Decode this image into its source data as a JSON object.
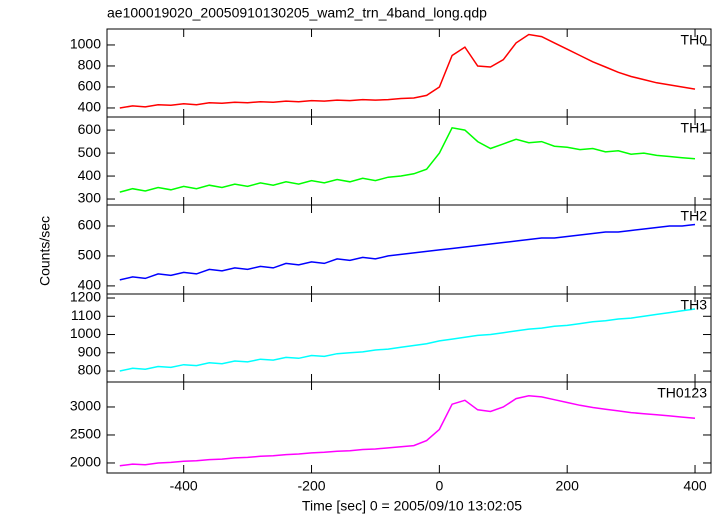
{
  "title": "ae100019020_20050910130205_wam2_trn_4band_long.qdp",
  "ylabel": "Counts/sec",
  "xlabel": "Time [sec] 0 = 2005/09/10 13:02:05",
  "xlim": [
    -520,
    425
  ],
  "xticks": [
    -400,
    -200,
    0,
    200,
    400
  ],
  "x": [
    -500,
    -480,
    -460,
    -440,
    -420,
    -400,
    -380,
    -360,
    -340,
    -320,
    -300,
    -280,
    -260,
    -240,
    -220,
    -200,
    -180,
    -160,
    -140,
    -120,
    -100,
    -80,
    -60,
    -40,
    -20,
    0,
    20,
    40,
    60,
    80,
    100,
    120,
    140,
    160,
    180,
    200,
    220,
    240,
    260,
    280,
    300,
    320,
    340,
    360,
    380,
    400
  ],
  "chart_data": [
    {
      "type": "line",
      "ylim": [
        314,
        1152
      ],
      "yticks": [
        400,
        600,
        800,
        1000
      ],
      "series": [
        {
          "name": "TH0",
          "color": "#ff0000",
          "values": [
            400,
            420,
            410,
            430,
            425,
            440,
            430,
            450,
            445,
            455,
            450,
            460,
            455,
            465,
            460,
            470,
            465,
            475,
            470,
            480,
            475,
            480,
            490,
            495,
            520,
            600,
            900,
            980,
            800,
            790,
            860,
            1020,
            1100,
            1080,
            1020,
            960,
            900,
            840,
            790,
            740,
            700,
            670,
            640,
            620,
            600,
            580
          ]
        }
      ]
    },
    {
      "type": "line",
      "ylim": [
        274,
        657
      ],
      "yticks": [
        300,
        400,
        500,
        600
      ],
      "series": [
        {
          "name": "TH1",
          "color": "#00ff00",
          "values": [
            330,
            345,
            335,
            350,
            340,
            355,
            345,
            360,
            350,
            365,
            355,
            370,
            360,
            375,
            365,
            380,
            370,
            385,
            375,
            390,
            380,
            395,
            400,
            410,
            430,
            500,
            610,
            600,
            550,
            520,
            540,
            560,
            545,
            550,
            530,
            525,
            515,
            520,
            505,
            510,
            495,
            500,
            490,
            485,
            480,
            475
          ]
        }
      ]
    },
    {
      "type": "line",
      "ylim": [
        373,
        670
      ],
      "yticks": [
        400,
        500,
        600
      ],
      "series": [
        {
          "name": "TH2",
          "color": "#0000ff",
          "values": [
            420,
            430,
            425,
            440,
            435,
            445,
            440,
            455,
            450,
            460,
            455,
            465,
            460,
            475,
            470,
            480,
            475,
            490,
            485,
            495,
            490,
            500,
            505,
            510,
            515,
            520,
            525,
            530,
            535,
            540,
            545,
            550,
            555,
            560,
            560,
            565,
            570,
            575,
            580,
            580,
            585,
            590,
            595,
            600,
            600,
            605
          ]
        }
      ]
    },
    {
      "type": "line",
      "ylim": [
        740,
        1222
      ],
      "yticks": [
        800,
        900,
        1000,
        1100,
        1200
      ],
      "series": [
        {
          "name": "TH3",
          "color": "#00ffff",
          "values": [
            800,
            815,
            810,
            825,
            820,
            835,
            830,
            845,
            840,
            855,
            850,
            865,
            860,
            875,
            870,
            885,
            880,
            895,
            900,
            905,
            915,
            920,
            930,
            940,
            950,
            965,
            975,
            985,
            995,
            1000,
            1010,
            1020,
            1030,
            1035,
            1045,
            1050,
            1060,
            1070,
            1075,
            1085,
            1090,
            1100,
            1110,
            1120,
            1130,
            1140
          ]
        }
      ]
    },
    {
      "type": "line",
      "ylim": [
        1821,
        3446
      ],
      "yticks": [
        2000,
        2500,
        3000
      ],
      "series": [
        {
          "name": "TH0123",
          "color": "#ff00ff",
          "values": [
            1950,
            1980,
            1970,
            2000,
            2010,
            2030,
            2040,
            2060,
            2070,
            2090,
            2100,
            2120,
            2130,
            2150,
            2160,
            2180,
            2190,
            2210,
            2220,
            2240,
            2250,
            2270,
            2290,
            2310,
            2400,
            2600,
            3050,
            3120,
            2950,
            2920,
            3000,
            3150,
            3200,
            3180,
            3130,
            3080,
            3030,
            2990,
            2960,
            2930,
            2900,
            2880,
            2860,
            2840,
            2820,
            2800
          ]
        }
      ]
    }
  ]
}
